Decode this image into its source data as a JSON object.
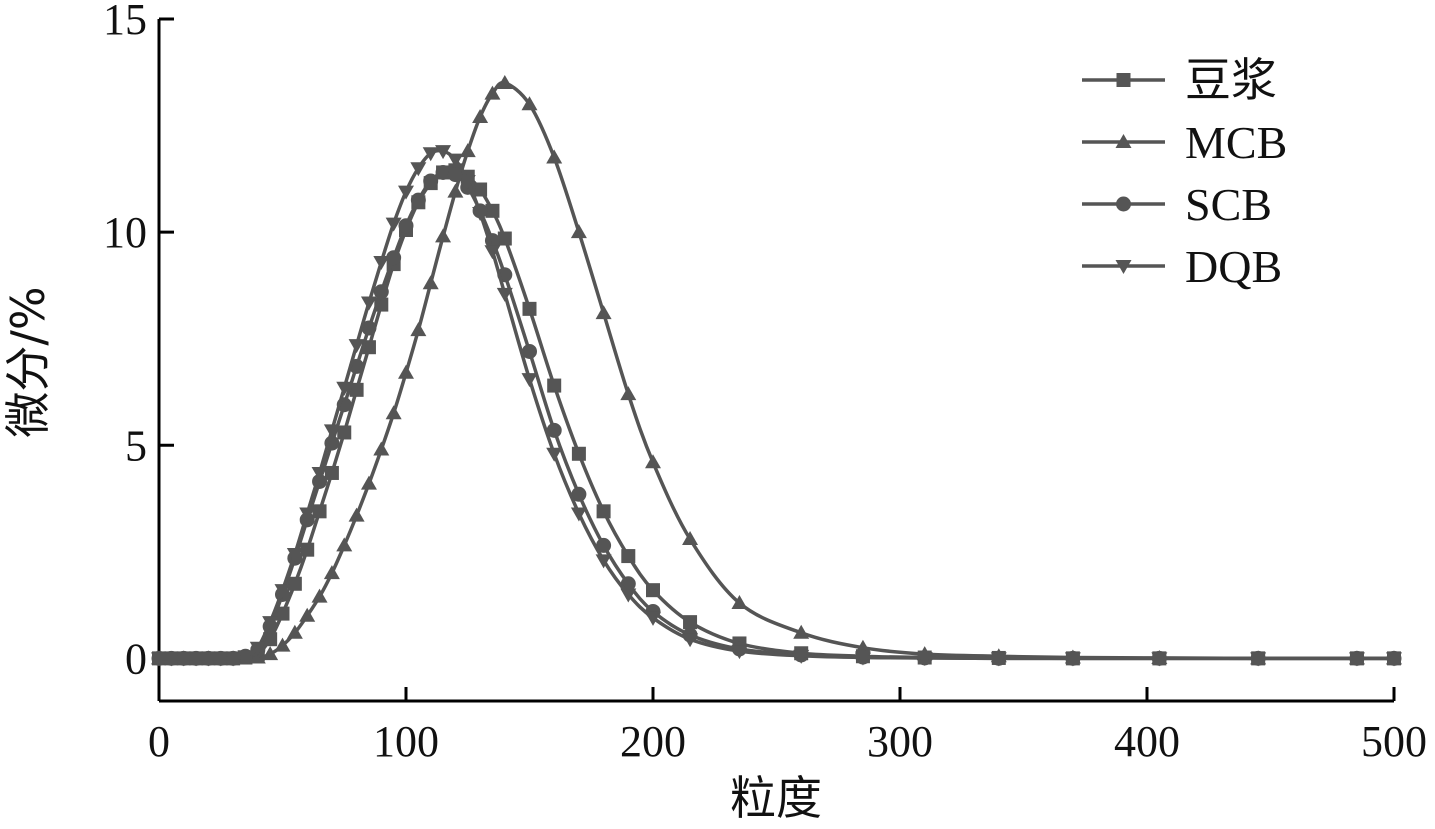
{
  "chart_data": {
    "type": "line",
    "title": "",
    "xlabel": "粒度",
    "ylabel": "微分/%",
    "xlim": [
      0,
      500
    ],
    "ylim": [
      -1,
      15
    ],
    "xticks": [
      "0",
      "100",
      "200",
      "300",
      "400",
      "500"
    ],
    "yticks": [
      "0",
      "5",
      "10",
      "15"
    ],
    "legend_position": "top-right",
    "grid": false,
    "series": [
      {
        "name": "豆浆",
        "marker": "square",
        "color": "#555555",
        "x": [
          0,
          5,
          10,
          15,
          20,
          25,
          30,
          35,
          40,
          45,
          50,
          55,
          60,
          65,
          70,
          75,
          80,
          85,
          90,
          95,
          100,
          105,
          110,
          115,
          120,
          125,
          130,
          135,
          140,
          150,
          160,
          170,
          180,
          190,
          200,
          215,
          235,
          260,
          285,
          310,
          340,
          370,
          405,
          445,
          485,
          500
        ],
        "y": [
          0,
          0,
          0,
          0,
          0,
          0,
          0,
          0.02,
          0.1,
          0.45,
          1.05,
          1.75,
          2.55,
          3.45,
          4.35,
          5.3,
          6.3,
          7.3,
          8.3,
          9.25,
          10.05,
          10.7,
          11.15,
          11.4,
          11.45,
          11.3,
          11.0,
          10.5,
          9.85,
          8.2,
          6.4,
          4.8,
          3.45,
          2.4,
          1.6,
          0.85,
          0.35,
          0.12,
          0.05,
          0.02,
          0.01,
          0,
          0,
          0,
          0,
          0
        ]
      },
      {
        "name": "MCB",
        "marker": "triangle-up",
        "color": "#555555",
        "x": [
          0,
          10,
          20,
          30,
          40,
          45,
          50,
          55,
          60,
          65,
          70,
          75,
          80,
          85,
          90,
          95,
          100,
          105,
          110,
          115,
          120,
          125,
          130,
          135,
          140,
          150,
          160,
          170,
          180,
          190,
          200,
          215,
          235,
          260,
          285,
          310,
          340,
          370,
          405,
          445,
          485,
          500
        ],
        "y": [
          0,
          0,
          0,
          0,
          0.02,
          0.1,
          0.3,
          0.6,
          1.0,
          1.45,
          2.0,
          2.65,
          3.35,
          4.1,
          4.9,
          5.75,
          6.7,
          7.7,
          8.8,
          9.9,
          10.95,
          11.9,
          12.7,
          13.25,
          13.5,
          13.0,
          11.75,
          10.0,
          8.1,
          6.2,
          4.6,
          2.8,
          1.3,
          0.6,
          0.25,
          0.1,
          0.05,
          0.02,
          0.01,
          0,
          0,
          0
        ]
      },
      {
        "name": "SCB",
        "marker": "circle",
        "color": "#555555",
        "x": [
          0,
          5,
          10,
          15,
          20,
          25,
          30,
          35,
          40,
          45,
          50,
          55,
          60,
          65,
          70,
          75,
          80,
          85,
          90,
          95,
          100,
          105,
          110,
          115,
          120,
          125,
          130,
          135,
          140,
          150,
          160,
          170,
          180,
          190,
          200,
          215,
          235,
          260,
          285,
          310,
          340,
          370,
          405,
          445,
          485,
          500
        ],
        "y": [
          0,
          0,
          0,
          0,
          0,
          0,
          0,
          0.05,
          0.2,
          0.75,
          1.5,
          2.35,
          3.25,
          4.15,
          5.05,
          5.95,
          6.85,
          7.75,
          8.6,
          9.4,
          10.15,
          10.75,
          11.2,
          11.4,
          11.35,
          11.05,
          10.5,
          9.8,
          9.0,
          7.2,
          5.35,
          3.85,
          2.65,
          1.75,
          1.1,
          0.55,
          0.22,
          0.08,
          0.03,
          0.01,
          0,
          0,
          0,
          0,
          0,
          0
        ]
      },
      {
        "name": "DQB",
        "marker": "triangle-down",
        "color": "#555555",
        "x": [
          0,
          5,
          10,
          15,
          20,
          25,
          30,
          35,
          40,
          45,
          50,
          55,
          60,
          65,
          70,
          75,
          80,
          85,
          90,
          95,
          100,
          105,
          110,
          115,
          120,
          125,
          130,
          135,
          140,
          150,
          160,
          170,
          180,
          190,
          200,
          215,
          235,
          260,
          285,
          310,
          340,
          370,
          405,
          445,
          485,
          500
        ],
        "y": [
          0,
          0,
          0,
          0,
          0,
          0,
          0,
          0.05,
          0.25,
          0.85,
          1.6,
          2.45,
          3.4,
          4.35,
          5.35,
          6.35,
          7.35,
          8.35,
          9.3,
          10.2,
          10.95,
          11.5,
          11.85,
          11.9,
          11.7,
          11.2,
          10.45,
          9.55,
          8.55,
          6.55,
          4.8,
          3.4,
          2.3,
          1.5,
          0.95,
          0.45,
          0.17,
          0.06,
          0.02,
          0.01,
          0,
          0,
          0,
          0,
          0,
          0
        ]
      }
    ]
  }
}
